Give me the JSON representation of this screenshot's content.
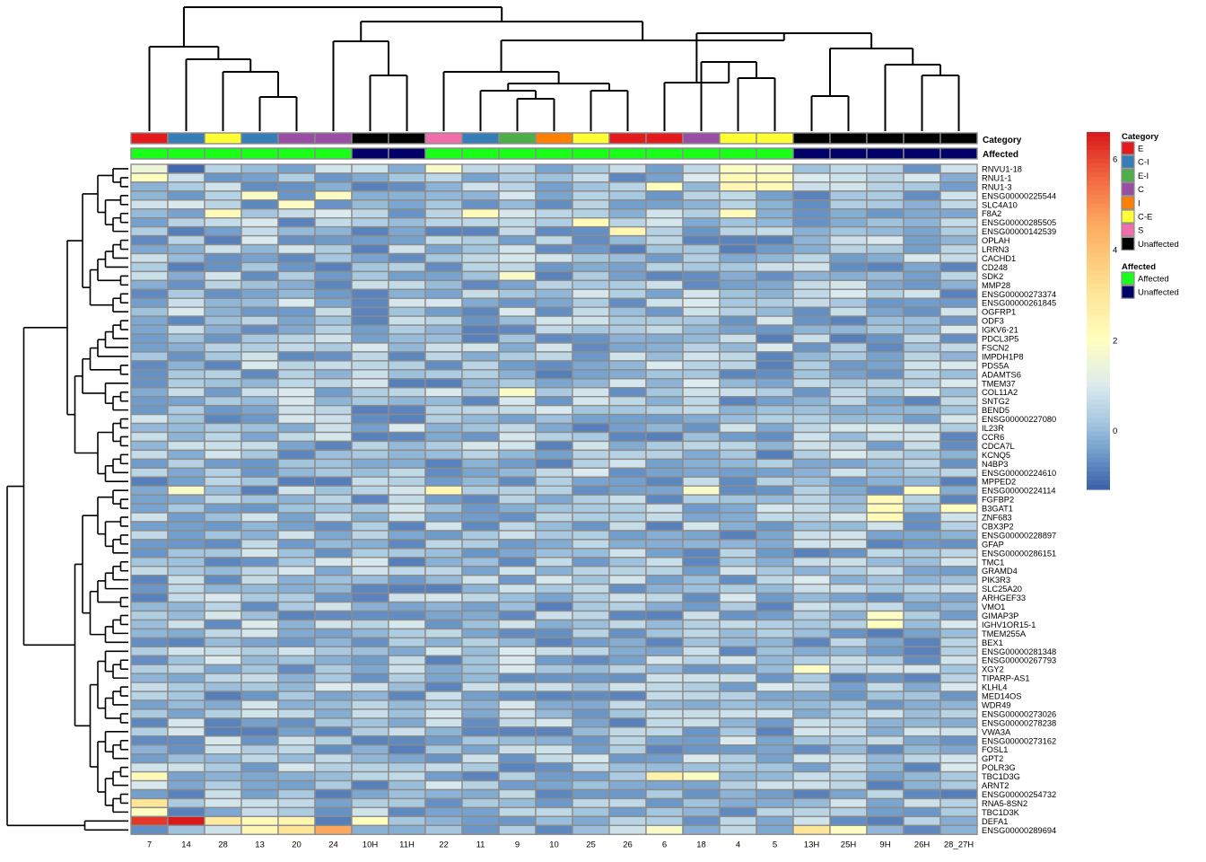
{
  "chart_data": {
    "type": "heatmap",
    "columns": [
      "7",
      "14",
      "28",
      "13",
      "20",
      "24",
      "10H",
      "11H",
      "22",
      "11",
      "9",
      "10",
      "25",
      "26",
      "6",
      "18",
      "4",
      "5",
      "13H",
      "25H",
      "9H",
      "26H",
      "28_27H"
    ],
    "rows": [
      "RNVU1-18",
      "RNU1-1",
      "RNU1-3",
      "ENSG00000225544",
      "SLC4A10",
      "F8A2",
      "ENSG00000285505",
      "ENSG00000142539",
      "OPLAH",
      "LRRN3",
      "CACHD1",
      "CD248",
      "SDK2",
      "MMP28",
      "ENSG00000273374",
      "ENSG00000261845",
      "OGFRP1",
      "ODF3",
      "IGKV6-21",
      "PDCL3P5",
      "FSCN2",
      "IMPDH1P8",
      "PDS5A",
      "ADAMTS6",
      "TMEM37",
      "COL11A2",
      "SNTG2",
      "BEND5",
      "ENSG00000227080",
      "IL23R",
      "CCR6",
      "CDCA7L",
      "KCNQ5",
      "N4BP3",
      "ENSG00000224610",
      "MPPED2",
      "ENSG00000224114",
      "FGFBP2",
      "B3GAT1",
      "ZNF683",
      "CBX3P2",
      "ENSG00000228897",
      "GFAP",
      "ENSG00000286151",
      "TMC1",
      "GRAMD4",
      "PIK3R3",
      "SLC25A20",
      "ARHGEF33",
      "VMO1",
      "GIMAP3P",
      "IGHV1OR15-1",
      "TMEM255A",
      "BEX1",
      "ENSG00000281348",
      "ENSG00000267793",
      "XGY2",
      "TIPARP-AS1",
      "KLHL4",
      "MED14OS",
      "WDR49",
      "ENSG00000273026",
      "ENSG00000278238",
      "VWA3A",
      "ENSG00000273162",
      "FOSL1",
      "GPT2",
      "POLR3G",
      "TBC1D3G",
      "ARNT2",
      "ENSG00000254732",
      "RNA5-8SN2",
      "TBC1D3K",
      "DEFA1",
      "ENSG00000289694"
    ],
    "annotations": {
      "category_title": "Category",
      "affected_title": "Affected",
      "category": [
        "E",
        "C-I",
        "C-E",
        "C-I",
        "C",
        "C",
        "Unaffected",
        "Unaffected",
        "S",
        "C-I",
        "E-I",
        "I",
        "C-E",
        "E",
        "E",
        "C",
        "C-E",
        "C-E",
        "Unaffected",
        "Unaffected",
        "Unaffected",
        "Unaffected",
        "Unaffected"
      ],
      "affected": [
        "Affected",
        "Affected",
        "Affected",
        "Affected",
        "Affected",
        "Affected",
        "Unaffected",
        "Unaffected",
        "Affected",
        "Affected",
        "Affected",
        "Affected",
        "Affected",
        "Affected",
        "Affected",
        "Affected",
        "Affected",
        "Affected",
        "Unaffected",
        "Unaffected",
        "Unaffected",
        "Unaffected",
        "Unaffected"
      ]
    },
    "legend": {
      "category": [
        {
          "label": "E",
          "color": "#e41a1c"
        },
        {
          "label": "C-I",
          "color": "#377eb8"
        },
        {
          "label": "E-I",
          "color": "#4daf4a"
        },
        {
          "label": "C",
          "color": "#984ea3"
        },
        {
          "label": "I",
          "color": "#ff7f00"
        },
        {
          "label": "C-E",
          "color": "#ffff33"
        },
        {
          "label": "S",
          "color": "#f06eaa"
        },
        {
          "label": "Unaffected",
          "color": "#000000"
        }
      ],
      "affected": [
        {
          "label": "Affected",
          "color": "#1aff1a"
        },
        {
          "label": "Unaffected",
          "color": "#000066"
        }
      ]
    },
    "color_scale": {
      "range": [
        -1.3,
        6.6
      ],
      "ticks": [
        0,
        2,
        4,
        6
      ],
      "tick_labels": [
        "0",
        "2",
        "4",
        "6"
      ],
      "stops": [
        {
          "value": -1.3,
          "color": "#3b5fa8"
        },
        {
          "value": -0.5,
          "color": "#6f9ccb"
        },
        {
          "value": 0.2,
          "color": "#a6c8e0"
        },
        {
          "value": 1.0,
          "color": "#dcebee"
        },
        {
          "value": 2.0,
          "color": "#ffffbf"
        },
        {
          "value": 3.2,
          "color": "#fee090"
        },
        {
          "value": 4.5,
          "color": "#fdae61"
        },
        {
          "value": 5.5,
          "color": "#f46d43"
        },
        {
          "value": 6.6,
          "color": "#d7191c"
        }
      ]
    },
    "special_values": [
      {
        "row": "RNVU1-18",
        "column": "14",
        "value": -1.2
      },
      {
        "row": "RNVU1-18",
        "column": "7",
        "value": 1.5
      },
      {
        "row": "RNVU1-18",
        "column": "22",
        "value": 1.8
      },
      {
        "row": "RNVU1-18",
        "column": "4",
        "value": 1.9
      },
      {
        "row": "RNVU1-18",
        "column": "5",
        "value": 1.7
      },
      {
        "row": "RNU1-1",
        "column": "7",
        "value": 2.0
      },
      {
        "row": "RNU1-1",
        "column": "4",
        "value": 2.2
      },
      {
        "row": "RNU1-1",
        "column": "5",
        "value": 2.1
      },
      {
        "row": "RNU1-3",
        "column": "4",
        "value": 2.3
      },
      {
        "row": "RNU1-3",
        "column": "5",
        "value": 2.2
      },
      {
        "row": "RNU1-3",
        "column": "6",
        "value": 2.0
      },
      {
        "row": "ENSG00000225544",
        "column": "24",
        "value": 1.9
      },
      {
        "row": "ENSG00000225544",
        "column": "13",
        "value": 1.8
      },
      {
        "row": "SLC4A10",
        "column": "20",
        "value": 1.9
      },
      {
        "row": "F8A2",
        "column": "28",
        "value": 2.2
      },
      {
        "row": "F8A2",
        "column": "11",
        "value": 2.1
      },
      {
        "row": "F8A2",
        "column": "4",
        "value": 2.1
      },
      {
        "row": "ENSG00000285505",
        "column": "25",
        "value": 2.2
      },
      {
        "row": "ENSG00000142539",
        "column": "26",
        "value": 2.3
      },
      {
        "row": "SDK2",
        "column": "9",
        "value": 1.8
      },
      {
        "row": "COL11A2",
        "column": "9",
        "value": 1.9
      },
      {
        "row": "ENSG00000224114",
        "column": "22",
        "value": 2.3
      },
      {
        "row": "ENSG00000224114",
        "column": "14",
        "value": 1.8
      },
      {
        "row": "ENSG00000224114",
        "column": "18",
        "value": 1.8
      },
      {
        "row": "ENSG00000224114",
        "column": "26H",
        "value": 2.0
      },
      {
        "row": "FGFBP2",
        "column": "9H",
        "value": 2.2
      },
      {
        "row": "B3GAT1",
        "column": "9H",
        "value": 2.1
      },
      {
        "row": "B3GAT1",
        "column": "28_27H",
        "value": 2.0
      },
      {
        "row": "ZNF683",
        "column": "9H",
        "value": 2.2
      },
      {
        "row": "GIMAP3P",
        "column": "9H",
        "value": 1.9
      },
      {
        "row": "IGHV1OR15-1",
        "column": "9H",
        "value": 2.0
      },
      {
        "row": "XGY2",
        "column": "13H",
        "value": 1.9
      },
      {
        "row": "TBC1D3G",
        "column": "7",
        "value": 2.2
      },
      {
        "row": "TBC1D3G",
        "column": "6",
        "value": 2.5
      },
      {
        "row": "TBC1D3G",
        "column": "18",
        "value": 1.9
      },
      {
        "row": "RNA5-8SN2",
        "column": "7",
        "value": 3.0
      },
      {
        "row": "TBC1D3K",
        "column": "7",
        "value": 2.0
      },
      {
        "row": "DEFA1",
        "column": "7",
        "value": 6.2
      },
      {
        "row": "DEFA1",
        "column": "14",
        "value": 6.6
      },
      {
        "row": "DEFA1",
        "column": "28",
        "value": 2.8
      },
      {
        "row": "DEFA1",
        "column": "13",
        "value": 2.2
      },
      {
        "row": "DEFA1",
        "column": "20",
        "value": 2.4
      },
      {
        "row": "DEFA1",
        "column": "10H",
        "value": 2.0
      },
      {
        "row": "ENSG00000289694",
        "column": "13",
        "value": 2.3
      },
      {
        "row": "ENSG00000289694",
        "column": "20",
        "value": 3.0
      },
      {
        "row": "ENSG00000289694",
        "column": "24",
        "value": 4.6
      },
      {
        "row": "ENSG00000289694",
        "column": "13H",
        "value": 3.0
      },
      {
        "row": "ENSG00000289694",
        "column": "25H",
        "value": 2.0
      },
      {
        "row": "ENSG00000289694",
        "column": "6",
        "value": 1.8
      }
    ]
  }
}
